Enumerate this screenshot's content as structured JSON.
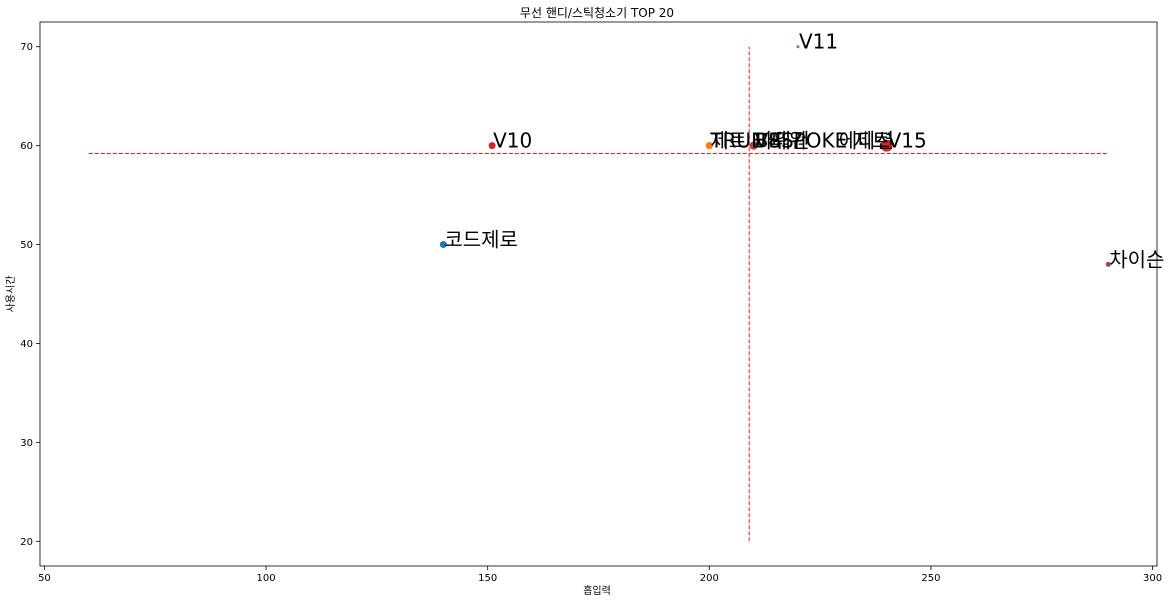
{
  "chart_data": {
    "type": "scatter",
    "title": "무선 핸디/스틱청소기 TOP 20",
    "xlabel": "흡입력",
    "ylabel": "사용시간",
    "xlim": [
      49,
      301
    ],
    "ylim": [
      17.5,
      72.5
    ],
    "xticks": [
      50,
      100,
      150,
      200,
      250,
      300
    ],
    "yticks": [
      20,
      30,
      40,
      50,
      60,
      70
    ],
    "grid": false,
    "legend": "none",
    "mean_lines": {
      "x": 209,
      "y": 59.2,
      "x_extent": [
        60,
        290
      ],
      "y_extent": [
        20,
        70
      ],
      "color": "#e41a1c"
    },
    "points": [
      {
        "label": "코드제로",
        "x": 140,
        "y": 50,
        "color": "#1f77b4",
        "size": 7
      },
      {
        "label": "V10",
        "x": 151,
        "y": 60,
        "color": "#d62728",
        "size": 7
      },
      {
        "label": "제트",
        "x": 200,
        "y": 60,
        "color": "#ff7f0e",
        "size": 7
      },
      {
        "label": "TRUE 파워",
        "x": 200,
        "y": 60,
        "color": "#ff7f0e",
        "size": 7
      },
      {
        "label": "파워건",
        "x": 210,
        "y": 60,
        "color": "#ff7f0e",
        "size": 8
      },
      {
        "label": "BESPOKE 제트",
        "x": 210,
        "y": 60,
        "color": "#d62728",
        "size": 8
      },
      {
        "label": "V8",
        "x": 210,
        "y": 60,
        "color": "#8c564b",
        "size": 6
      },
      {
        "label": "V11",
        "x": 220,
        "y": 70,
        "color": "#9467bd",
        "size": 3
      },
      {
        "label": "V15",
        "x": 240,
        "y": 60,
        "color": "#d62728",
        "size": 12
      },
      {
        "label": "에디션",
        "x": 229,
        "y": 60,
        "color": "#d62728",
        "size": 0
      },
      {
        "label": "차이슨",
        "x": 290,
        "y": 48,
        "color": "#8c564b",
        "size": 5
      }
    ]
  }
}
